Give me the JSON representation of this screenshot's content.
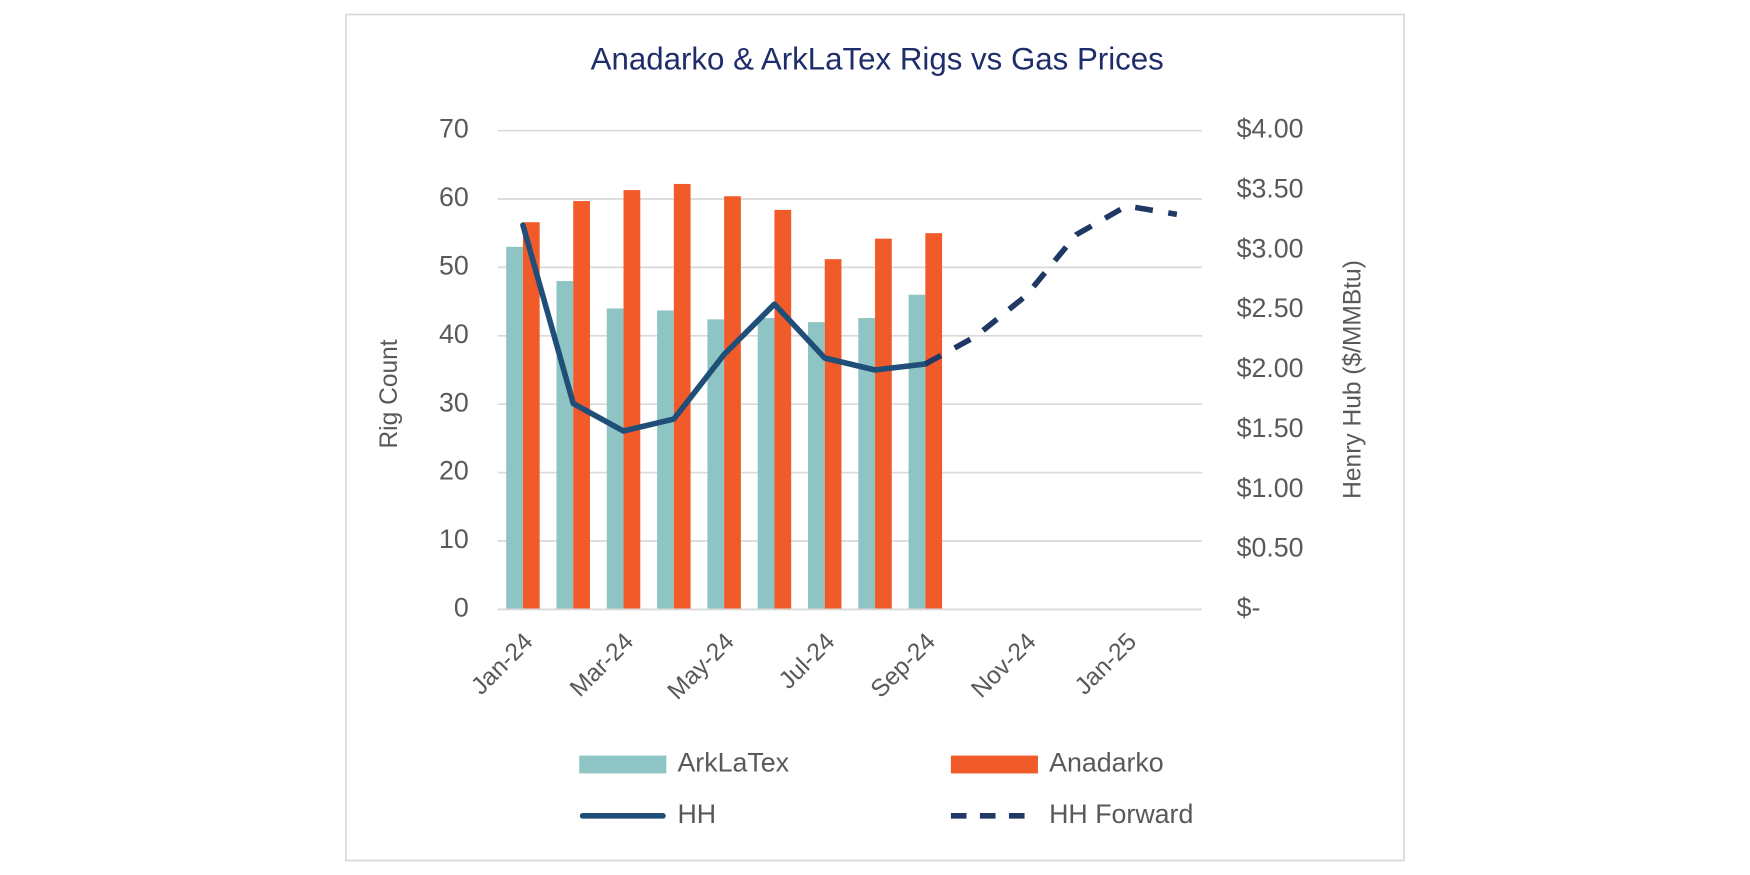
{
  "chart_data": {
    "type": "bar-line",
    "title": "Anadarko & ArkLaTex Rigs vs Gas Prices",
    "ylabel": "Rig Count",
    "y2label": "Henry Hub ($/MMBtu)",
    "categories": [
      "Jan-24",
      null,
      "Mar-24",
      null,
      "May-24",
      null,
      "Jul-24",
      null,
      "Sep-24",
      null,
      "Nov-24",
      null,
      "Jan-25",
      null
    ],
    "ylim": [
      0,
      70
    ],
    "yticks": [
      0,
      10,
      20,
      30,
      40,
      50,
      60,
      70
    ],
    "y2lim": [
      0,
      4
    ],
    "y2ticks": [
      {
        "value": 0,
        "label": "$-"
      },
      {
        "value": 0.5,
        "label": "$0.50"
      },
      {
        "value": 1,
        "label": "$1.00"
      },
      {
        "value": 1.5,
        "label": "$1.50"
      },
      {
        "value": 2,
        "label": "$2.00"
      },
      {
        "value": 2.5,
        "label": "$2.50"
      },
      {
        "value": 3,
        "label": "$3.00"
      },
      {
        "value": 3.5,
        "label": "$3.50"
      },
      {
        "value": 4,
        "label": "$4.00"
      }
    ],
    "grid": true,
    "legend": "bottom",
    "series": [
      {
        "name": "ArkLaTex",
        "type": "bar",
        "color": "#8ec5c4",
        "values": [
          53,
          48,
          44,
          43.7,
          42.4,
          42.6,
          42,
          42.6,
          46,
          null,
          null,
          null,
          null,
          null
        ]
      },
      {
        "name": "Anadarko",
        "type": "bar",
        "color": "#f15a29",
        "values": [
          56.6,
          59.7,
          61.3,
          62.2,
          60.4,
          58.4,
          51.2,
          54.2,
          55,
          null,
          null,
          null,
          null,
          null
        ]
      },
      {
        "name": "HH",
        "type": "line",
        "axis": "y2",
        "color": "#1f4e79",
        "dashed": false,
        "values": [
          3.21,
          1.72,
          1.49,
          1.59,
          2.13,
          2.55,
          2.1,
          2.0,
          2.05,
          null,
          null,
          null,
          null,
          null
        ]
      },
      {
        "name": "HH Forward",
        "type": "line",
        "axis": "y2",
        "color": "#1f3864",
        "dashed": true,
        "values": [
          null,
          null,
          null,
          null,
          null,
          null,
          null,
          null,
          2.05,
          2.28,
          2.62,
          3.13,
          3.37,
          3.3
        ]
      }
    ]
  }
}
